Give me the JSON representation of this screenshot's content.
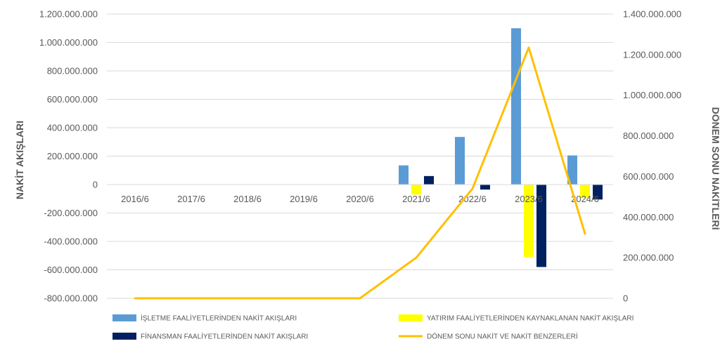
{
  "chart_data": {
    "type": "bar",
    "categories": [
      "2016/6",
      "2017/6",
      "2018/6",
      "2019/6",
      "2020/6",
      "2021/6",
      "2022/6",
      "2023/6",
      "2024/6"
    ],
    "series": [
      {
        "name": "İŞLETME FAALİYETLERİNDEN NAKİT AKIŞLARI",
        "type": "bar",
        "axis": "left",
        "color": "#5b9bd5",
        "values": [
          0,
          0,
          0,
          0,
          0,
          135000000,
          335000000,
          1100000000,
          205000000
        ]
      },
      {
        "name": "YATIRIM FAALİYETLERİNDEN KAYNAKLANAN NAKİT AKIŞLARI",
        "type": "bar",
        "axis": "left",
        "color": "#ffff00",
        "values": [
          0,
          0,
          0,
          0,
          0,
          -70000000,
          0,
          -510000000,
          -95000000
        ]
      },
      {
        "name": "FİNANSMAN FAALİYETLERİNDEN NAKİT AKIŞLARI",
        "type": "bar",
        "axis": "left",
        "color": "#002060",
        "values": [
          0,
          0,
          0,
          0,
          0,
          60000000,
          -35000000,
          -580000000,
          -105000000
        ]
      },
      {
        "name": "DÖNEM SONU NAKİT VE NAKİT BENZERLERİ",
        "type": "line",
        "axis": "right",
        "color": "#ffc000",
        "values": [
          0,
          0,
          0,
          0,
          0,
          200000000,
          540000000,
          1235000000,
          318000000
        ]
      }
    ],
    "y_left": {
      "label": "NAKİT AKIŞLARI",
      "ylim": [
        -800000000,
        1200000000
      ],
      "ticks": [
        "1.200.000.000",
        "1.000.000.000",
        "800.000.000",
        "600.000.000",
        "400.000.000",
        "200.000.000",
        "0",
        "-200.000.000",
        "-400.000.000",
        "-600.000.000",
        "-800.000.000"
      ],
      "tick_values": [
        1200000000,
        1000000000,
        800000000,
        600000000,
        400000000,
        200000000,
        0,
        -200000000,
        -400000000,
        -600000000,
        -800000000
      ]
    },
    "y_right": {
      "label": "DÖNEM SONU NAKİTLERİ",
      "ylim": [
        0,
        1400000000
      ],
      "ticks": [
        "1.400.000.000",
        "1.200.000.000",
        "1.000.000.000",
        "800.000.000",
        "600.000.000",
        "400.000.000",
        "200.000.000",
        "0"
      ],
      "tick_values": [
        1400000000,
        1200000000,
        1000000000,
        800000000,
        600000000,
        400000000,
        200000000,
        0
      ]
    },
    "grid": true,
    "legend": "bottom"
  }
}
